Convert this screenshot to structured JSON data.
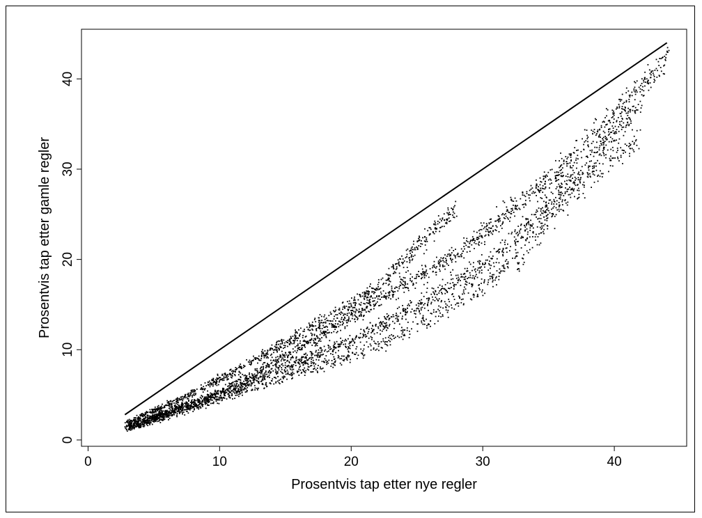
{
  "chart_data": {
    "type": "scatter",
    "title": "",
    "xlabel": "Prosentvis tap etter nye regler",
    "ylabel": "Prosentvis tap etter gamle regler",
    "xlim": [
      -0.5,
      45.5
    ],
    "ylim": [
      -0.7,
      45.5
    ],
    "xticks": [
      0,
      10,
      20,
      30,
      40
    ],
    "yticks": [
      0,
      10,
      20,
      30,
      40
    ],
    "grid": false,
    "colors": {
      "points": "#000000",
      "line": "#000000",
      "frame": "#000000"
    },
    "reference_line": {
      "x": [
        2.8,
        44
      ],
      "y": [
        2.8,
        44
      ]
    },
    "scatter_bands": [
      {
        "points": [
          [
            3,
            1.9
          ],
          [
            8,
            5.2
          ],
          [
            12,
            8.2
          ],
          [
            18,
            13.3
          ],
          [
            22,
            16.8
          ],
          [
            26,
            23
          ],
          [
            28,
            25.7
          ]
        ]
      },
      {
        "points": [
          [
            3,
            1.6
          ],
          [
            10,
            5.2
          ],
          [
            15,
            9.2
          ],
          [
            19,
            12.8
          ],
          [
            22,
            15.5
          ],
          [
            25,
            18.0
          ],
          [
            28,
            20.5
          ],
          [
            32,
            25.2
          ],
          [
            36,
            30.0
          ],
          [
            40,
            36.0
          ],
          [
            44,
            42.2
          ]
        ]
      },
      {
        "points": [
          [
            3,
            1.3
          ],
          [
            10,
            4.9
          ],
          [
            15,
            8.0
          ],
          [
            20,
            11.0
          ],
          [
            24,
            14.0
          ],
          [
            27,
            16.5
          ],
          [
            31,
            20.2
          ],
          [
            34,
            24.5
          ],
          [
            38,
            30.5
          ],
          [
            42,
            37.5
          ]
        ]
      },
      {
        "points": [
          [
            3,
            1.2
          ],
          [
            12,
            5.5
          ],
          [
            17,
            8.0
          ],
          [
            21,
            10.0
          ],
          [
            23,
            11.2
          ],
          [
            26,
            13.5
          ],
          [
            30,
            17.0
          ],
          [
            33,
            20.5
          ],
          [
            36,
            26.0
          ],
          [
            40,
            31.5
          ],
          [
            42,
            33.5
          ]
        ]
      }
    ]
  }
}
